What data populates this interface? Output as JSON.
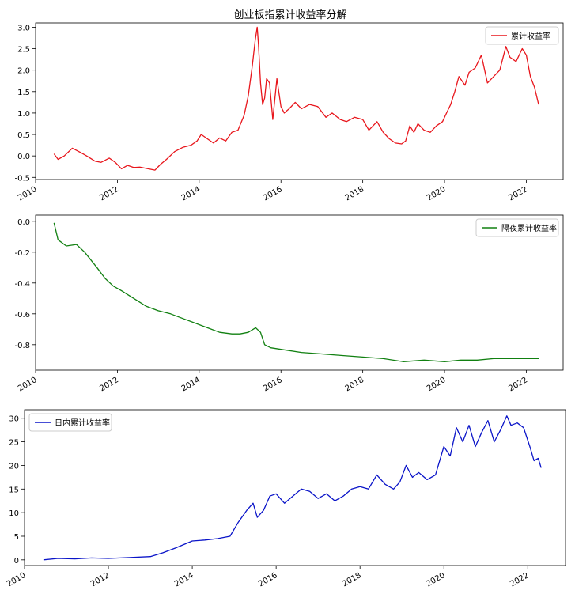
{
  "figure": {
    "title": "创业板指累计收益率分解"
  },
  "chart_data": [
    {
      "type": "line",
      "title": "创业板指累计收益率分解",
      "xlabel": "",
      "ylabel": "",
      "xlim": [
        2010.0,
        2022.9
      ],
      "ylim": [
        -0.55,
        3.1
      ],
      "x_ticks": [
        "2010",
        "2012",
        "2014",
        "2016",
        "2018",
        "2020",
        "2022"
      ],
      "y_ticks": [
        "-0.5",
        "0.0",
        "0.5",
        "1.0",
        "1.5",
        "2.0",
        "2.5",
        "3.0"
      ],
      "legend": "top-right",
      "grid": false,
      "series": [
        {
          "name": "累计收益率",
          "color": "#e8161c",
          "x": [
            2010.45,
            2010.55,
            2010.7,
            2010.9,
            2011.1,
            2011.25,
            2011.45,
            2011.6,
            2011.8,
            2011.95,
            2012.1,
            2012.25,
            2012.4,
            2012.55,
            2012.75,
            2012.92,
            2013.05,
            2013.2,
            2013.4,
            2013.6,
            2013.8,
            2013.95,
            2014.05,
            2014.2,
            2014.35,
            2014.5,
            2014.65,
            2014.8,
            2014.95,
            2015.1,
            2015.2,
            2015.3,
            2015.37,
            2015.42,
            2015.45,
            2015.5,
            2015.55,
            2015.6,
            2015.65,
            2015.72,
            2015.8,
            2015.9,
            2016.0,
            2016.08,
            2016.2,
            2016.35,
            2016.5,
            2016.7,
            2016.9,
            2017.1,
            2017.25,
            2017.45,
            2017.6,
            2017.8,
            2018.0,
            2018.15,
            2018.35,
            2018.5,
            2018.65,
            2018.8,
            2018.95,
            2019.05,
            2019.15,
            2019.25,
            2019.35,
            2019.5,
            2019.65,
            2019.8,
            2019.95,
            2020.05,
            2020.15,
            2020.25,
            2020.35,
            2020.5,
            2020.6,
            2020.75,
            2020.9,
            2021.05,
            2021.2,
            2021.35,
            2021.5,
            2021.6,
            2021.75,
            2021.9,
            2022.0,
            2022.1,
            2022.2,
            2022.3
          ],
          "values": [
            0.05,
            -0.08,
            0.0,
            0.18,
            0.08,
            0.0,
            -0.12,
            -0.15,
            -0.05,
            -0.15,
            -0.3,
            -0.22,
            -0.27,
            -0.26,
            -0.3,
            -0.33,
            -0.2,
            -0.08,
            0.1,
            0.2,
            0.25,
            0.35,
            0.5,
            0.4,
            0.3,
            0.42,
            0.35,
            0.55,
            0.6,
            0.95,
            1.4,
            2.1,
            2.7,
            3.0,
            2.6,
            1.7,
            1.2,
            1.35,
            1.8,
            1.7,
            0.85,
            1.8,
            1.15,
            1.0,
            1.1,
            1.25,
            1.1,
            1.2,
            1.15,
            0.9,
            1.0,
            0.85,
            0.8,
            0.9,
            0.85,
            0.6,
            0.8,
            0.55,
            0.4,
            0.3,
            0.28,
            0.35,
            0.7,
            0.55,
            0.75,
            0.6,
            0.55,
            0.7,
            0.8,
            1.0,
            1.2,
            1.5,
            1.85,
            1.65,
            1.95,
            2.05,
            2.35,
            1.7,
            1.85,
            2.0,
            2.55,
            2.3,
            2.2,
            2.5,
            2.35,
            1.85,
            1.6,
            1.2
          ]
        }
      ]
    },
    {
      "type": "line",
      "title": "",
      "xlabel": "",
      "ylabel": "",
      "xlim": [
        2010.0,
        2022.9
      ],
      "ylim": [
        -0.965,
        0.04
      ],
      "x_ticks": [
        "2010",
        "2012",
        "2014",
        "2016",
        "2018",
        "2020",
        "2022"
      ],
      "y_ticks": [
        "-0.8",
        "-0.6",
        "-0.4",
        "-0.2",
        "0.0"
      ],
      "legend": "top-right",
      "grid": false,
      "series": [
        {
          "name": "隔夜累计收益率",
          "color": "#118011",
          "x": [
            2010.45,
            2010.55,
            2010.75,
            2011.0,
            2011.2,
            2011.5,
            2011.7,
            2011.9,
            2012.1,
            2012.4,
            2012.7,
            2013.0,
            2013.3,
            2013.6,
            2013.9,
            2014.2,
            2014.5,
            2014.8,
            2015.0,
            2015.2,
            2015.38,
            2015.5,
            2015.6,
            2015.75,
            2016.0,
            2016.5,
            2017.0,
            2017.5,
            2018.0,
            2018.5,
            2019.0,
            2019.5,
            2020.0,
            2020.4,
            2020.8,
            2021.2,
            2021.6,
            2022.0,
            2022.3
          ],
          "values": [
            -0.01,
            -0.12,
            -0.16,
            -0.15,
            -0.2,
            -0.3,
            -0.37,
            -0.42,
            -0.45,
            -0.5,
            -0.55,
            -0.58,
            -0.6,
            -0.63,
            -0.66,
            -0.69,
            -0.72,
            -0.73,
            -0.73,
            -0.72,
            -0.69,
            -0.72,
            -0.8,
            -0.82,
            -0.83,
            -0.85,
            -0.86,
            -0.87,
            -0.88,
            -0.89,
            -0.91,
            -0.9,
            -0.91,
            -0.9,
            -0.9,
            -0.89,
            -0.89,
            -0.89,
            -0.89
          ]
        }
      ]
    },
    {
      "type": "line",
      "title": "",
      "xlabel": "",
      "ylabel": "",
      "xlim": [
        2010.0,
        2022.9
      ],
      "ylim": [
        -1.2,
        31.8
      ],
      "x_ticks": [
        "2010",
        "2012",
        "2014",
        "2016",
        "2018",
        "2020",
        "2022"
      ],
      "y_ticks": [
        "0",
        "5",
        "10",
        "15",
        "20",
        "25",
        "30"
      ],
      "legend": "top-left",
      "grid": false,
      "series": [
        {
          "name": "日内累计收益率",
          "color": "#0a14c8",
          "x": [
            2010.45,
            2010.8,
            2011.2,
            2011.6,
            2012.0,
            2012.5,
            2013.0,
            2013.3,
            2013.6,
            2014.0,
            2014.3,
            2014.6,
            2014.9,
            2015.1,
            2015.3,
            2015.45,
            2015.55,
            2015.7,
            2015.85,
            2016.0,
            2016.2,
            2016.4,
            2016.6,
            2016.8,
            2017.0,
            2017.2,
            2017.4,
            2017.6,
            2017.8,
            2018.0,
            2018.2,
            2018.4,
            2018.6,
            2018.8,
            2018.95,
            2019.1,
            2019.25,
            2019.4,
            2019.6,
            2019.8,
            2020.0,
            2020.15,
            2020.3,
            2020.45,
            2020.6,
            2020.75,
            2020.9,
            2021.05,
            2021.2,
            2021.35,
            2021.5,
            2021.6,
            2021.75,
            2021.9,
            2022.05,
            2022.15,
            2022.25,
            2022.32
          ],
          "values": [
            0.0,
            0.3,
            0.2,
            0.4,
            0.3,
            0.5,
            0.7,
            1.5,
            2.5,
            4.0,
            4.2,
            4.5,
            5.0,
            8.0,
            10.5,
            12.0,
            9.0,
            10.5,
            13.5,
            14.0,
            12.0,
            13.5,
            15.0,
            14.5,
            13.0,
            14.0,
            12.5,
            13.5,
            15.0,
            15.5,
            15.0,
            18.0,
            16.0,
            15.0,
            16.5,
            20.0,
            17.5,
            18.5,
            17.0,
            18.0,
            24.0,
            22.0,
            28.0,
            25.0,
            28.5,
            24.0,
            27.0,
            29.5,
            25.0,
            27.5,
            30.5,
            28.5,
            29.0,
            28.0,
            24.0,
            21.0,
            21.5,
            19.5
          ]
        }
      ]
    }
  ]
}
